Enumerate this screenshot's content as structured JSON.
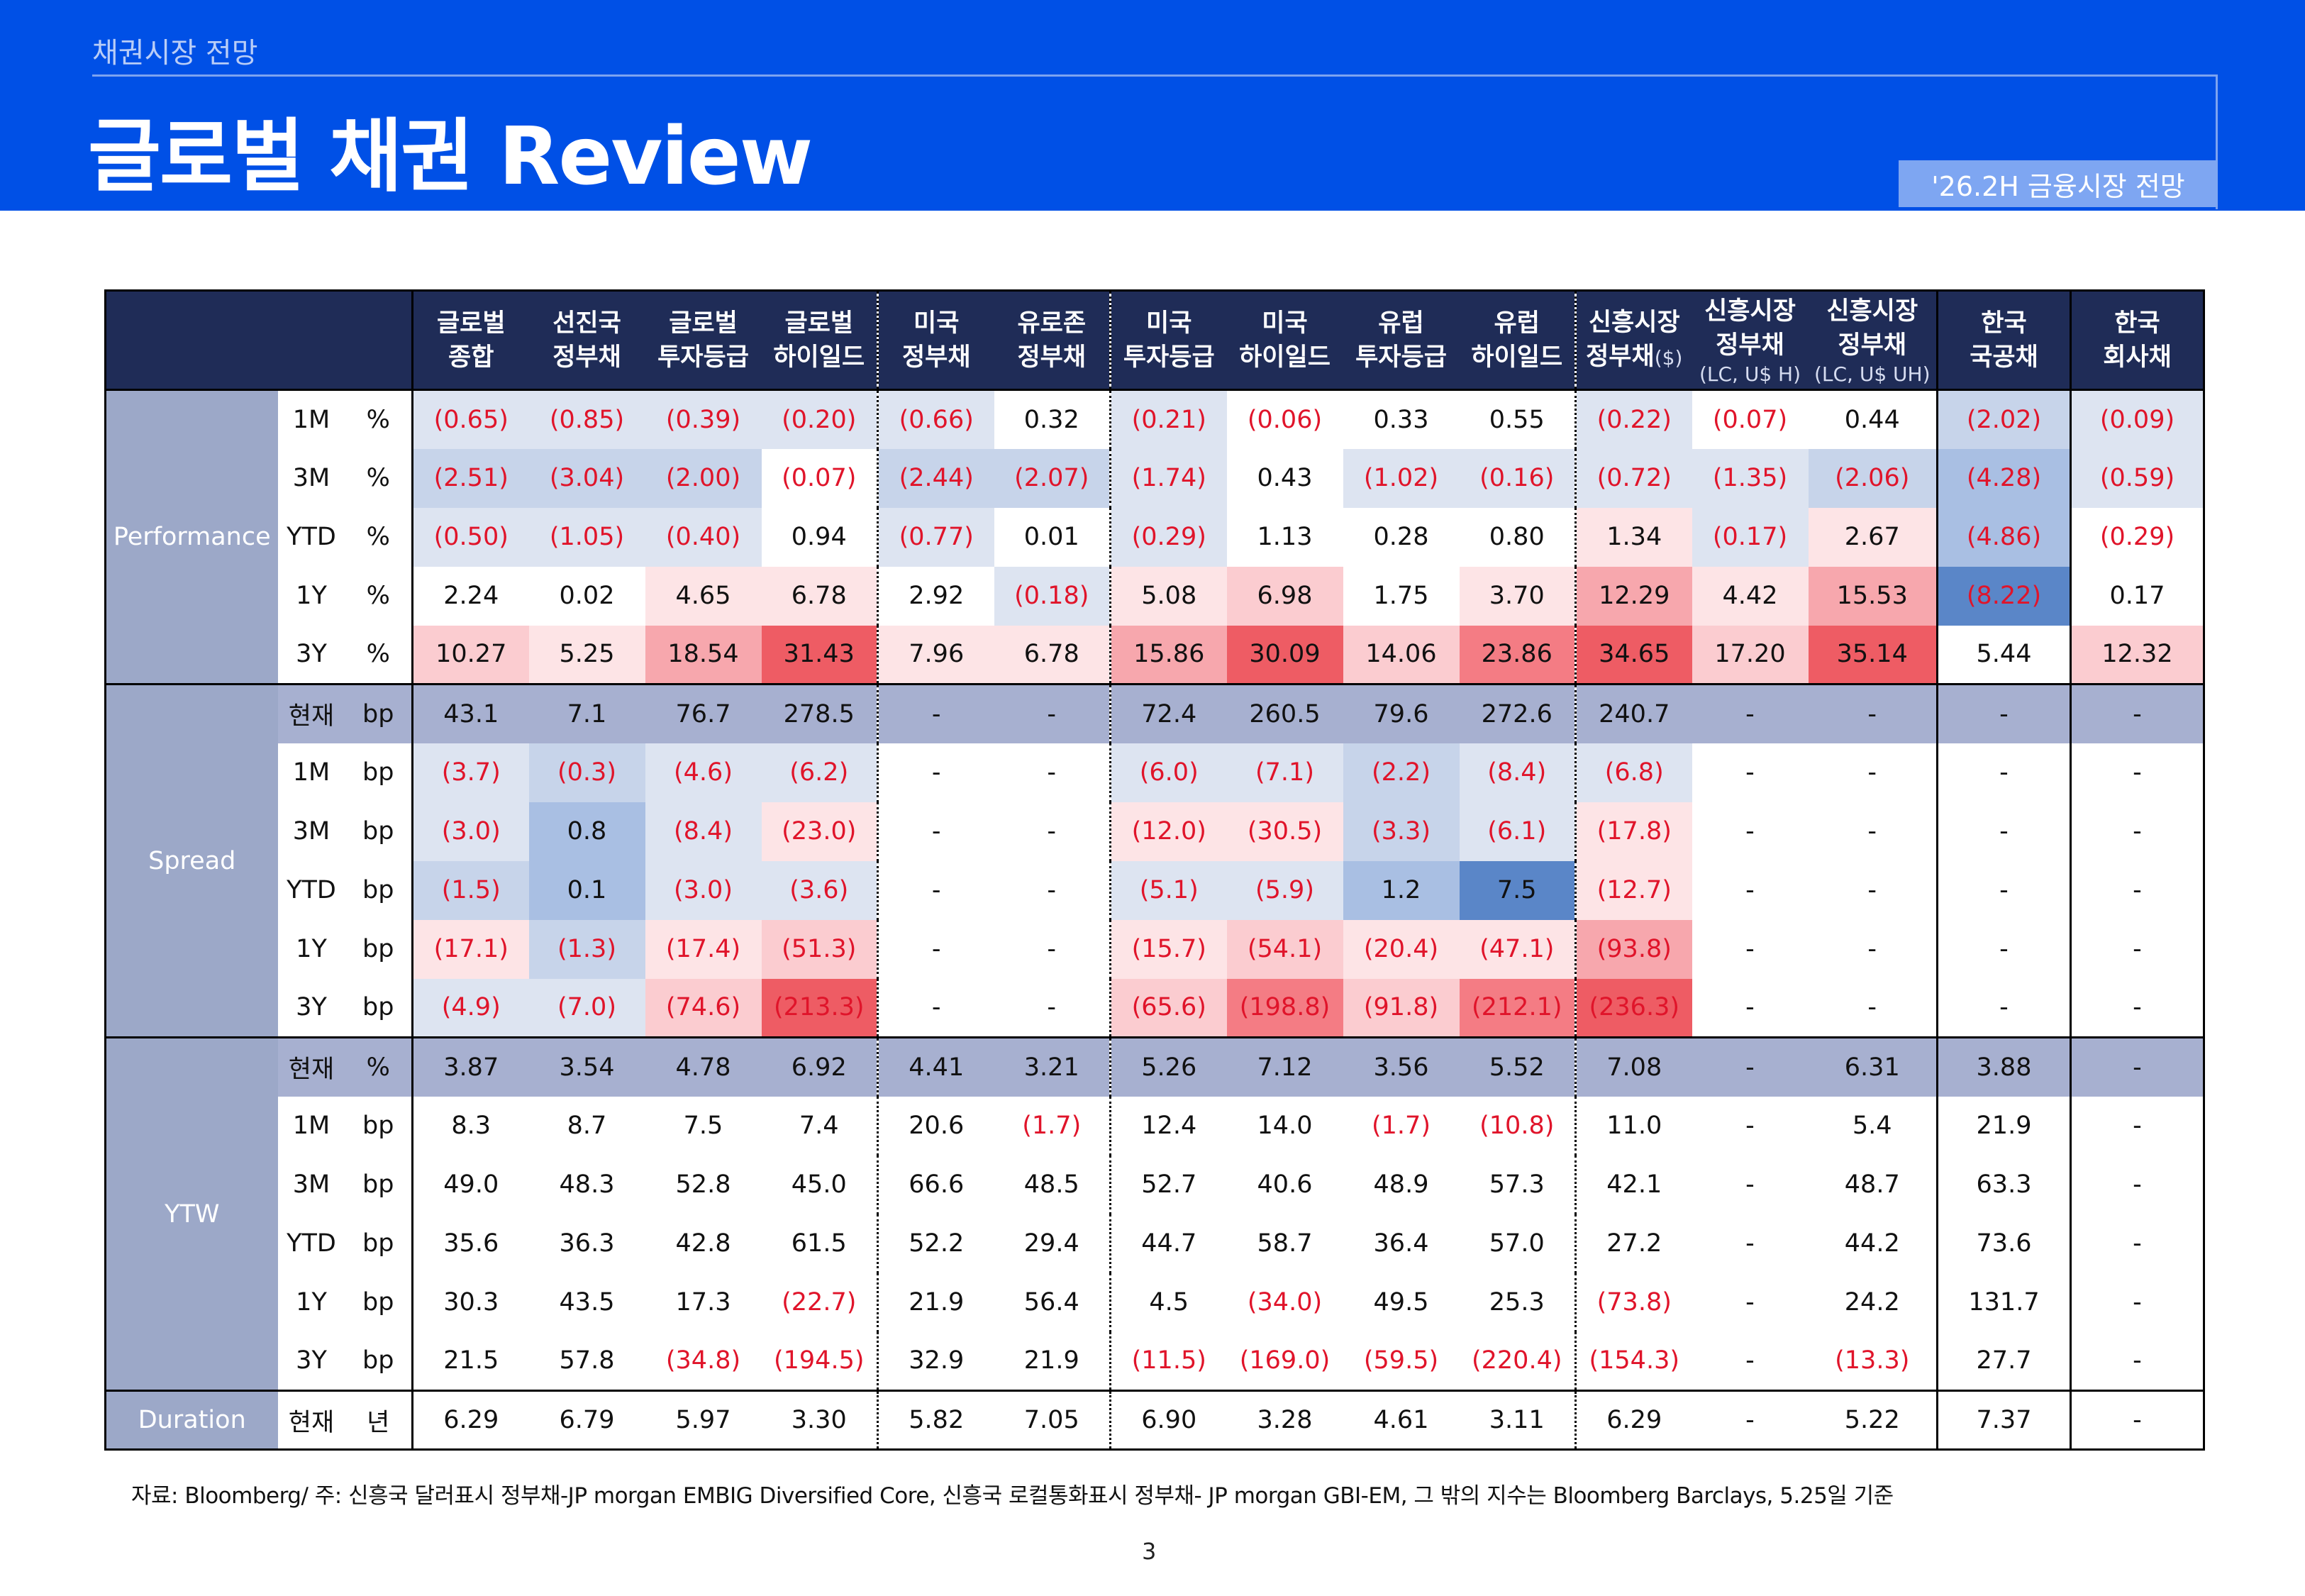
{
  "header": {
    "kicker": "채권시장 전망",
    "title": "글로벌 채권 Review",
    "badge": "'26.2H 금융시장 전망"
  },
  "colors": {
    "banner": "#0050e6",
    "header_row": "#1f2c57",
    "group_cell": "#9ca8c8",
    "negative_text": "#e0142a"
  },
  "columns": [
    {
      "l1": "글로벌",
      "l2": "종합"
    },
    {
      "l1": "선진국",
      "l2": "정부채"
    },
    {
      "l1": "글로벌",
      "l2": "투자등급"
    },
    {
      "l1": "글로벌",
      "l2": "하이일드"
    },
    {
      "l1": "미국",
      "l2": "정부채"
    },
    {
      "l1": "유로존",
      "l2": "정부채"
    },
    {
      "l1": "미국",
      "l2": "투자등급"
    },
    {
      "l1": "미국",
      "l2": "하이일드"
    },
    {
      "l1": "유럽",
      "l2": "투자등급"
    },
    {
      "l1": "유럽",
      "l2": "하이일드"
    },
    {
      "l1": "신흥시장",
      "l2": "정부채",
      "inl": "($)"
    },
    {
      "l1": "신흥시장",
      "l2": "정부채",
      "l3": "(LC, U$ H)"
    },
    {
      "l1": "신흥시장",
      "l2": "정부채",
      "l3": "(LC, U$ UH)"
    },
    {
      "l1": "한국",
      "l2": "국공채"
    },
    {
      "l1": "한국",
      "l2": "회사채"
    }
  ],
  "groups": [
    {
      "name": "Performance",
      "rows": [
        {
          "label": "1M",
          "unit": "%",
          "values": [
            "(0.65)",
            "(0.85)",
            "(0.39)",
            "(0.20)",
            "(0.66)",
            "0.32",
            "(0.21)",
            "(0.06)",
            "0.33",
            "0.55",
            "(0.22)",
            "(0.07)",
            "0.44",
            "(2.02)",
            "(0.09)"
          ]
        },
        {
          "label": "3M",
          "unit": "%",
          "values": [
            "(2.51)",
            "(3.04)",
            "(2.00)",
            "(0.07)",
            "(2.44)",
            "(2.07)",
            "(1.74)",
            "0.43",
            "(1.02)",
            "(0.16)",
            "(0.72)",
            "(1.35)",
            "(2.06)",
            "(4.28)",
            "(0.59)"
          ]
        },
        {
          "label": "YTD",
          "unit": "%",
          "values": [
            "(0.50)",
            "(1.05)",
            "(0.40)",
            "0.94",
            "(0.77)",
            "0.01",
            "(0.29)",
            "1.13",
            "0.28",
            "0.80",
            "1.34",
            "(0.17)",
            "2.67",
            "(4.86)",
            "(0.29)"
          ]
        },
        {
          "label": "1Y",
          "unit": "%",
          "values": [
            "2.24",
            "0.02",
            "4.65",
            "6.78",
            "2.92",
            "(0.18)",
            "5.08",
            "6.98",
            "1.75",
            "3.70",
            "12.29",
            "4.42",
            "15.53",
            "(8.22)",
            "0.17"
          ]
        },
        {
          "label": "3Y",
          "unit": "%",
          "values": [
            "10.27",
            "5.25",
            "18.54",
            "31.43",
            "7.96",
            "6.78",
            "15.86",
            "30.09",
            "14.06",
            "23.86",
            "34.65",
            "17.20",
            "35.14",
            "5.44",
            "12.32"
          ]
        }
      ]
    },
    {
      "name": "Spread",
      "rows": [
        {
          "label": "현재",
          "unit": "bp",
          "hl": true,
          "values": [
            "43.1",
            "7.1",
            "76.7",
            "278.5",
            "-",
            "-",
            "72.4",
            "260.5",
            "79.6",
            "272.6",
            "240.7",
            "-",
            "-",
            "-",
            "-"
          ]
        },
        {
          "label": "1M",
          "unit": "bp",
          "values": [
            "(3.7)",
            "(0.3)",
            "(4.6)",
            "(6.2)",
            "-",
            "-",
            "(6.0)",
            "(7.1)",
            "(2.2)",
            "(8.4)",
            "(6.8)",
            "-",
            "-",
            "-",
            "-"
          ]
        },
        {
          "label": "3M",
          "unit": "bp",
          "values": [
            "(3.0)",
            "0.8",
            "(8.4)",
            "(23.0)",
            "-",
            "-",
            "(12.0)",
            "(30.5)",
            "(3.3)",
            "(6.1)",
            "(17.8)",
            "-",
            "-",
            "-",
            "-"
          ]
        },
        {
          "label": "YTD",
          "unit": "bp",
          "values": [
            "(1.5)",
            "0.1",
            "(3.0)",
            "(3.6)",
            "-",
            "-",
            "(5.1)",
            "(5.9)",
            "1.2",
            "7.5",
            "(12.7)",
            "-",
            "-",
            "-",
            "-"
          ]
        },
        {
          "label": "1Y",
          "unit": "bp",
          "values": [
            "(17.1)",
            "(1.3)",
            "(17.4)",
            "(51.3)",
            "-",
            "-",
            "(15.7)",
            "(54.1)",
            "(20.4)",
            "(47.1)",
            "(93.8)",
            "-",
            "-",
            "-",
            "-"
          ]
        },
        {
          "label": "3Y",
          "unit": "bp",
          "values": [
            "(4.9)",
            "(7.0)",
            "(74.6)",
            "(213.3)",
            "-",
            "-",
            "(65.6)",
            "(198.8)",
            "(91.8)",
            "(212.1)",
            "(236.3)",
            "-",
            "-",
            "-",
            "-"
          ]
        }
      ]
    },
    {
      "name": "YTW",
      "rows": [
        {
          "label": "현재",
          "unit": "%",
          "hl": true,
          "values": [
            "3.87",
            "3.54",
            "4.78",
            "6.92",
            "4.41",
            "3.21",
            "5.26",
            "7.12",
            "3.56",
            "5.52",
            "7.08",
            "-",
            "6.31",
            "3.88",
            "-"
          ]
        },
        {
          "label": "1M",
          "unit": "bp",
          "values": [
            "8.3",
            "8.7",
            "7.5",
            "7.4",
            "20.6",
            "(1.7)",
            "12.4",
            "14.0",
            "(1.7)",
            "(10.8)",
            "11.0",
            "-",
            "5.4",
            "21.9",
            "-"
          ]
        },
        {
          "label": "3M",
          "unit": "bp",
          "values": [
            "49.0",
            "48.3",
            "52.8",
            "45.0",
            "66.6",
            "48.5",
            "52.7",
            "40.6",
            "48.9",
            "57.3",
            "42.1",
            "-",
            "48.7",
            "63.3",
            "-"
          ]
        },
        {
          "label": "YTD",
          "unit": "bp",
          "values": [
            "35.6",
            "36.3",
            "42.8",
            "61.5",
            "52.2",
            "29.4",
            "44.7",
            "58.7",
            "36.4",
            "57.0",
            "27.2",
            "-",
            "44.2",
            "73.6",
            "-"
          ]
        },
        {
          "label": "1Y",
          "unit": "bp",
          "values": [
            "30.3",
            "43.5",
            "17.3",
            "(22.7)",
            "21.9",
            "56.4",
            "4.5",
            "(34.0)",
            "49.5",
            "25.3",
            "(73.8)",
            "-",
            "24.2",
            "131.7",
            "-"
          ]
        },
        {
          "label": "3Y",
          "unit": "bp",
          "values": [
            "21.5",
            "57.8",
            "(34.8)",
            "(194.5)",
            "32.9",
            "21.9",
            "(11.5)",
            "(169.0)",
            "(59.5)",
            "(220.4)",
            "(154.3)",
            "-",
            "(13.3)",
            "27.7",
            "-"
          ]
        }
      ]
    },
    {
      "name": "Duration",
      "rows": [
        {
          "label": "현재",
          "unit": "년",
          "values": [
            "6.29",
            "6.79",
            "5.97",
            "3.30",
            "5.82",
            "7.05",
            "6.90",
            "3.28",
            "4.61",
            "3.11",
            "6.29",
            "-",
            "5.22",
            "7.37",
            "-"
          ]
        }
      ]
    }
  ],
  "heat": {
    "Performance": [
      [
        "b1",
        "b1",
        "b1",
        "b1",
        "b1",
        "",
        "b1",
        "",
        "",
        "",
        "b1",
        "",
        "",
        "b2",
        "b1"
      ],
      [
        "b2",
        "b2",
        "b2",
        "",
        "b2",
        "b2",
        "b1",
        "",
        "b1",
        "b1",
        "b1",
        "b1",
        "b2",
        "b3",
        "b1"
      ],
      [
        "b1",
        "b1",
        "b1",
        "",
        "b1",
        "",
        "b1",
        "",
        "",
        "",
        "r1",
        "b1",
        "r1",
        "b3",
        ""
      ],
      [
        "",
        "",
        "r1",
        "r1",
        "",
        "b1",
        "r1",
        "r2",
        "",
        "r1",
        "r3",
        "r1",
        "r3",
        "b5",
        ""
      ],
      [
        "r2",
        "r1",
        "r3",
        "r5",
        "r1",
        "r1",
        "r3",
        "r5",
        "r2",
        "r4",
        "r5",
        "r2",
        "r5",
        "",
        "r2"
      ]
    ],
    "Spread": [
      [
        "",
        "",
        "",
        "",
        "",
        "",
        "",
        "",
        "",
        "",
        "",
        "",
        "",
        "",
        ""
      ],
      [
        "b1",
        "b2",
        "b1",
        "b1",
        "",
        "",
        "b1",
        "b1",
        "b2",
        "b1",
        "b1",
        "",
        "",
        "",
        ""
      ],
      [
        "b1",
        "b3",
        "b1",
        "r1",
        "",
        "",
        "r1",
        "r1",
        "b2",
        "b1",
        "r1",
        "",
        "",
        "",
        ""
      ],
      [
        "b2",
        "b3",
        "b1",
        "b1",
        "",
        "",
        "b1",
        "b1",
        "b3",
        "b5",
        "r1",
        "",
        "",
        "",
        ""
      ],
      [
        "r1",
        "b2",
        "r1",
        "r2",
        "",
        "",
        "r1",
        "r2",
        "r1",
        "r1",
        "r3",
        "",
        "",
        "",
        ""
      ],
      [
        "b1",
        "b1",
        "r2",
        "r5",
        "",
        "",
        "r2",
        "r4",
        "r2",
        "r4",
        "r5",
        "",
        "",
        "",
        ""
      ]
    ]
  },
  "footnote": "자료: Bloomberg/ 주: 신흥국 달러표시 정부채-JP morgan EMBIG Diversified Core, 신흥국 로컬통화표시 정부채- JP morgan GBI-EM, 그 밖의 지수는 Bloomberg Barclays, 5.25일 기준",
  "page_number": "3"
}
